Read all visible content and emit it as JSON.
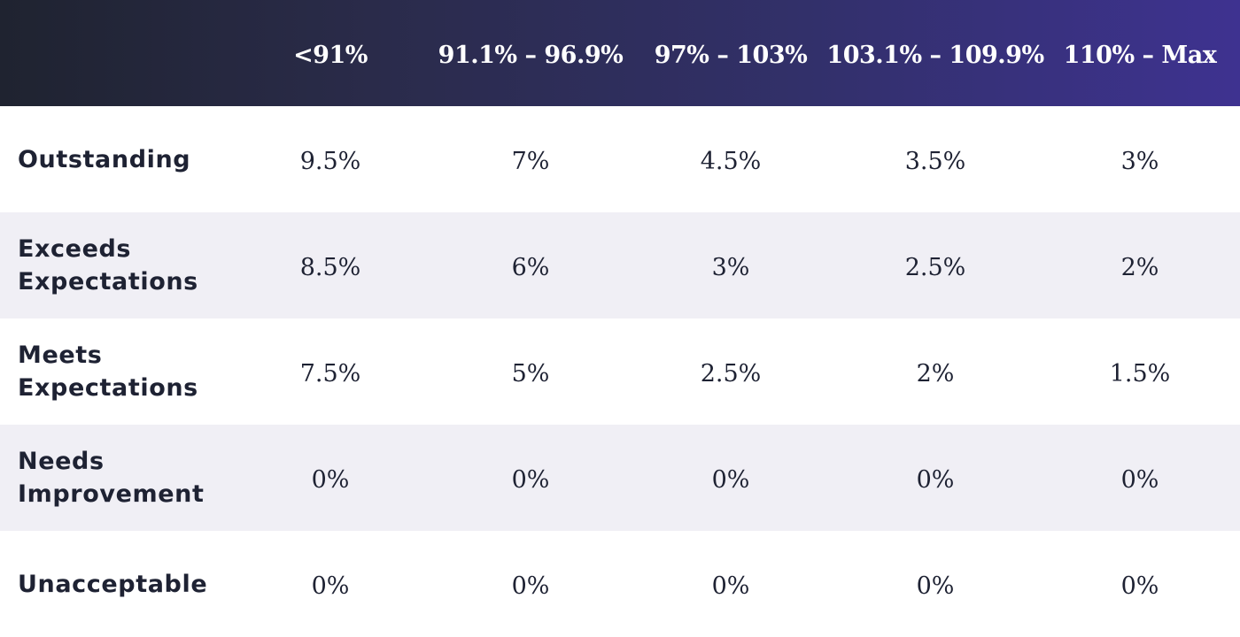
{
  "table": {
    "corner": "",
    "columns": [
      "<91%",
      "91.1% – 96.9%",
      "97% – 103%",
      "103.1% – 109.9%",
      "110% – Max"
    ],
    "rows": [
      {
        "label": "Outstanding",
        "values": [
          "9.5%",
          "7%",
          "4.5%",
          "3.5%",
          "3%"
        ]
      },
      {
        "label": "Exceeds Expectations",
        "values": [
          "8.5%",
          "6%",
          "3%",
          "2.5%",
          "2%"
        ]
      },
      {
        "label": "Meets Expectations",
        "values": [
          "7.5%",
          "5%",
          "2.5%",
          "2%",
          "1.5%"
        ]
      },
      {
        "label": "Needs Improvement",
        "values": [
          "0%",
          "0%",
          "0%",
          "0%",
          "0%"
        ]
      },
      {
        "label": "Unacceptable",
        "values": [
          "0%",
          "0%",
          "0%",
          "0%",
          "0%"
        ]
      }
    ]
  },
  "colors": {
    "header_gradient_start": "#1f2330",
    "header_gradient_end": "#3e3290",
    "row_shade": "#f0eff5",
    "text": "#1e2233"
  }
}
